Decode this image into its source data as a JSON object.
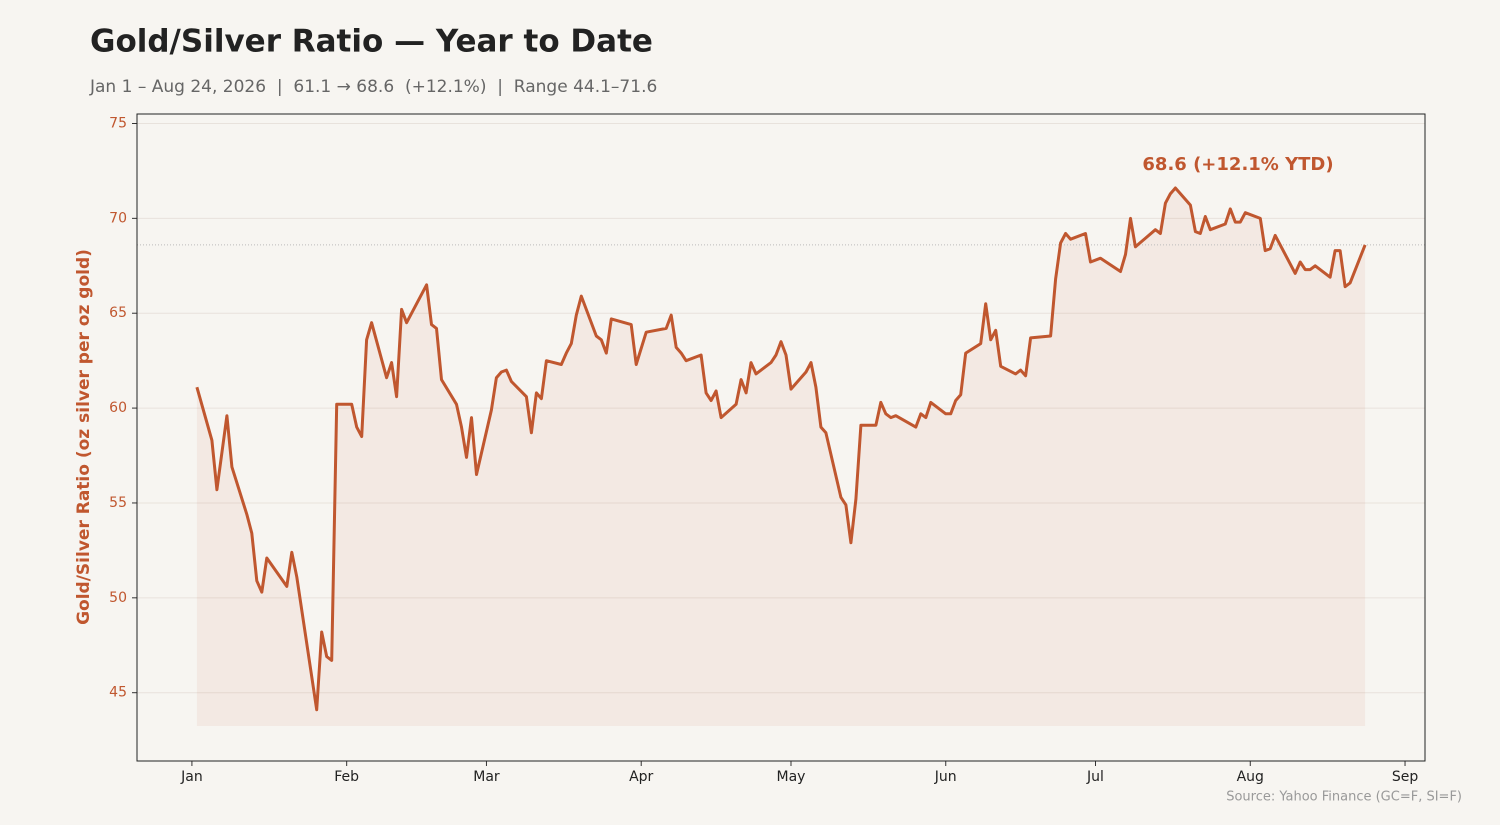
{
  "chart_data": {
    "type": "line",
    "title": "Gold/Silver Ratio — Year to Date",
    "subtitle": "Jan 1 – Aug 24, 2026  |  61.1 → 68.6  (+12.1%)  |  Range 44.1–71.6",
    "ylabel": "Gold/Silver Ratio (oz silver per oz gold)",
    "annotation": "68.6 (+12.1% YTD)",
    "source": "Source: Yahoo Finance (GC=F, SI=F)",
    "color": "#c0572f",
    "grid": true,
    "xlim": [
      "2025-12-21",
      "2026-09-05"
    ],
    "ylim": [
      41.4,
      75.5
    ],
    "yticks": [
      45,
      50,
      55,
      60,
      65,
      70,
      75
    ],
    "xticks": [
      {
        "value": "2026-01-01",
        "label": "Jan"
      },
      {
        "value": "2026-02-01",
        "label": "Feb"
      },
      {
        "value": "2026-03-01",
        "label": "Mar"
      },
      {
        "value": "2026-04-01",
        "label": "Apr"
      },
      {
        "value": "2026-05-01",
        "label": "May"
      },
      {
        "value": "2026-06-01",
        "label": "Jun"
      },
      {
        "value": "2026-07-01",
        "label": "Jul"
      },
      {
        "value": "2026-08-01",
        "label": "Aug"
      },
      {
        "value": "2026-09-01",
        "label": "Sep"
      }
    ],
    "x": [
      "2026-01-02",
      "2026-01-05",
      "2026-01-06",
      "2026-01-08",
      "2026-01-09",
      "2026-01-12",
      "2026-01-13",
      "2026-01-14",
      "2026-01-15",
      "2026-01-16",
      "2026-01-20",
      "2026-01-21",
      "2026-01-22",
      "2026-01-26",
      "2026-01-27",
      "2026-01-28",
      "2026-01-29",
      "2026-01-30",
      "2026-02-02",
      "2026-02-03",
      "2026-02-04",
      "2026-02-05",
      "2026-02-06",
      "2026-02-09",
      "2026-02-10",
      "2026-02-11",
      "2026-02-12",
      "2026-02-13",
      "2026-02-17",
      "2026-02-18",
      "2026-02-19",
      "2026-02-20",
      "2026-02-23",
      "2026-02-24",
      "2026-02-25",
      "2026-02-26",
      "2026-02-27",
      "2026-03-02",
      "2026-03-03",
      "2026-03-04",
      "2026-03-05",
      "2026-03-06",
      "2026-03-09",
      "2026-03-10",
      "2026-03-11",
      "2026-03-12",
      "2026-03-13",
      "2026-03-16",
      "2026-03-17",
      "2026-03-18",
      "2026-03-19",
      "2026-03-20",
      "2026-03-23",
      "2026-03-24",
      "2026-03-25",
      "2026-03-26",
      "2026-03-30",
      "2026-03-31",
      "2026-04-02",
      "2026-04-06",
      "2026-04-07",
      "2026-04-08",
      "2026-04-09",
      "2026-04-10",
      "2026-04-13",
      "2026-04-14",
      "2026-04-15",
      "2026-04-16",
      "2026-04-17",
      "2026-04-20",
      "2026-04-21",
      "2026-04-22",
      "2026-04-23",
      "2026-04-24",
      "2026-04-27",
      "2026-04-28",
      "2026-04-29",
      "2026-04-30",
      "2026-05-01",
      "2026-05-04",
      "2026-05-05",
      "2026-05-06",
      "2026-05-07",
      "2026-05-08",
      "2026-05-11",
      "2026-05-12",
      "2026-05-13",
      "2026-05-14",
      "2026-05-15",
      "2026-05-18",
      "2026-05-19",
      "2026-05-20",
      "2026-05-21",
      "2026-05-22",
      "2026-05-26",
      "2026-05-27",
      "2026-05-28",
      "2026-05-29",
      "2026-06-01",
      "2026-06-02",
      "2026-06-03",
      "2026-06-04",
      "2026-06-05",
      "2026-06-08",
      "2026-06-09",
      "2026-06-10",
      "2026-06-11",
      "2026-06-12",
      "2026-06-15",
      "2026-06-16",
      "2026-06-17",
      "2026-06-18",
      "2026-06-22",
      "2026-06-23",
      "2026-06-24",
      "2026-06-25",
      "2026-06-26",
      "2026-06-29",
      "2026-06-30",
      "2026-07-02",
      "2026-07-06",
      "2026-07-07",
      "2026-07-08",
      "2026-07-09",
      "2026-07-13",
      "2026-07-14",
      "2026-07-15",
      "2026-07-16",
      "2026-07-17",
      "2026-07-20",
      "2026-07-21",
      "2026-07-22",
      "2026-07-23",
      "2026-07-24",
      "2026-07-27",
      "2026-07-28",
      "2026-07-29",
      "2026-07-30",
      "2026-07-31",
      "2026-08-03",
      "2026-08-04",
      "2026-08-05",
      "2026-08-06",
      "2026-08-10",
      "2026-08-11",
      "2026-08-12",
      "2026-08-13",
      "2026-08-14",
      "2026-08-17",
      "2026-08-18",
      "2026-08-19",
      "2026-08-20",
      "2026-08-21",
      "2026-08-24"
    ],
    "values": [
      61.1,
      58.3,
      55.7,
      59.6,
      56.9,
      54.4,
      53.4,
      50.9,
      50.3,
      52.1,
      50.6,
      52.4,
      51.1,
      44.1,
      48.2,
      46.9,
      46.7,
      60.2,
      60.2,
      59.0,
      58.5,
      63.6,
      64.5,
      61.6,
      62.4,
      60.6,
      65.2,
      64.5,
      66.5,
      64.4,
      64.2,
      61.5,
      60.2,
      59.0,
      57.4,
      59.5,
      56.5,
      59.9,
      61.6,
      61.9,
      62.0,
      61.4,
      60.6,
      58.7,
      60.8,
      60.5,
      62.5,
      62.3,
      62.9,
      63.4,
      64.9,
      65.9,
      63.8,
      63.6,
      62.9,
      64.7,
      64.4,
      62.3,
      64.0,
      64.2,
      64.9,
      63.2,
      62.9,
      62.5,
      62.8,
      60.8,
      60.4,
      60.9,
      59.5,
      60.2,
      61.5,
      60.8,
      62.4,
      61.8,
      62.4,
      62.8,
      63.5,
      62.8,
      61.0,
      61.9,
      62.4,
      61.1,
      59.0,
      58.7,
      55.3,
      54.9,
      52.9,
      55.2,
      59.1,
      59.1,
      60.3,
      59.7,
      59.5,
      59.6,
      59.0,
      59.7,
      59.5,
      60.3,
      59.7,
      59.7,
      60.4,
      60.7,
      62.9,
      63.4,
      65.5,
      63.6,
      64.1,
      62.2,
      61.8,
      62.0,
      61.7,
      63.7,
      63.8,
      66.8,
      68.7,
      69.2,
      68.9,
      69.2,
      67.7,
      67.9,
      67.2,
      68.1,
      70.0,
      68.5,
      69.4,
      69.2,
      70.8,
      71.3,
      71.6,
      70.7,
      69.3,
      69.2,
      70.1,
      69.4,
      69.7,
      70.5,
      69.8,
      69.8,
      70.3,
      70.0,
      68.3,
      68.4,
      69.1,
      67.1,
      67.7,
      67.3,
      67.3,
      67.5,
      66.9,
      68.3,
      68.3,
      66.4,
      66.6,
      68.6
    ]
  }
}
